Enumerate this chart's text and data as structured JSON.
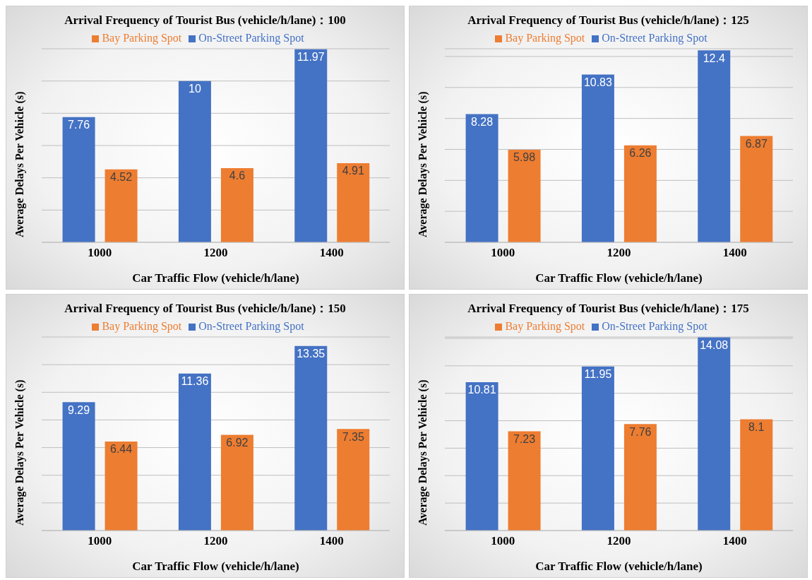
{
  "chart_data": [
    {
      "type": "bar",
      "title": "Arrival Frequency of Tourist Bus (vehicle/h/lane)：100",
      "xlabel": "Car Traffic Flow (vehicle/h/lane)",
      "ylabel": "Average Delays Per Vehicle (s)",
      "categories": [
        "1000",
        "1200",
        "1400"
      ],
      "series": [
        {
          "name": "On-Street Parking Spot",
          "color": "#4472c4",
          "values": [
            7.76,
            10,
            11.97
          ]
        },
        {
          "name": "Bay Parking Spot",
          "color": "#ed7d31",
          "values": [
            4.52,
            4.6,
            4.91
          ]
        }
      ],
      "ylim": [
        0,
        12
      ],
      "yticks": [
        {
          "value": 0,
          "label": null
        },
        {
          "value": 2,
          "label": null
        },
        {
          "value": 4,
          "label": null
        },
        {
          "value": 6,
          "label": null
        },
        {
          "value": 8,
          "label": null
        },
        {
          "value": 10,
          "label": null
        },
        {
          "value": 12,
          "label": null
        }
      ],
      "tick_labels": "x",
      "grid": "y",
      "legend": "top",
      "data_labels": true
    },
    {
      "type": "bar",
      "title": "Arrival Frequency of Tourist Bus (vehicle/h/lane)：125",
      "xlabel": "Car Traffic Flow (vehicle/h/lane)",
      "ylabel": "Average Delays Per Vehicle (s)",
      "categories": [
        "1000",
        "1200",
        "1400"
      ],
      "series": [
        {
          "name": "On-Street Parking Spot",
          "color": "#4472c4",
          "values": [
            8.28,
            10.83,
            12.4
          ]
        },
        {
          "name": "Bay Parking Spot",
          "color": "#ed7d31",
          "values": [
            5.98,
            6.26,
            6.87
          ]
        }
      ],
      "ylim": [
        0,
        12.5
      ],
      "yticks": [
        {
          "value": 0,
          "label": null
        },
        {
          "value": 2,
          "label": null
        },
        {
          "value": 4,
          "label": null
        },
        {
          "value": 6,
          "label": null
        },
        {
          "value": 8,
          "label": null
        },
        {
          "value": 10,
          "label": null
        },
        {
          "value": 12,
          "label": null
        }
      ],
      "tick_labels": "x",
      "grid": "y",
      "legend": "top",
      "data_labels": true
    },
    {
      "type": "bar",
      "title": "Arrival Frequency of Tourist Bus (vehicle/h/lane)：150",
      "xlabel": "Car Traffic Flow (vehicle/h/lane)",
      "ylabel": "Average Delays Per Vehicle (s)",
      "categories": [
        "1000",
        "1200",
        "1400"
      ],
      "series": [
        {
          "name": "On-Street Parking Spot",
          "color": "#4472c4",
          "values": [
            9.29,
            11.36,
            13.35
          ]
        },
        {
          "name": "Bay Parking Spot",
          "color": "#ed7d31",
          "values": [
            6.44,
            6.92,
            7.35
          ]
        }
      ],
      "ylim": [
        0,
        14
      ],
      "yticks": [
        {
          "value": 0,
          "label": null
        },
        {
          "value": 2,
          "label": null
        },
        {
          "value": 4,
          "label": null
        },
        {
          "value": 6,
          "label": null
        },
        {
          "value": 8,
          "label": null
        },
        {
          "value": 10,
          "label": null
        },
        {
          "value": 12,
          "label": null
        },
        {
          "value": 14,
          "label": null
        }
      ],
      "tick_labels": "x",
      "grid": "y",
      "legend": "top",
      "data_labels": true
    },
    {
      "type": "bar",
      "title": "Arrival Frequency of Tourist Bus (vehicle/h/lane)：175",
      "xlabel": "Car Traffic Flow (vehicle/h/lane)",
      "ylabel": "Average Delays Per Vehicle (s)",
      "categories": [
        "1000",
        "1200",
        "1400"
      ],
      "series": [
        {
          "name": "On-Street Parking Spot",
          "color": "#4472c4",
          "values": [
            10.81,
            11.95,
            14.08
          ]
        },
        {
          "name": "Bay Parking Spot",
          "color": "#ed7d31",
          "values": [
            7.23,
            7.76,
            8.1
          ]
        }
      ],
      "ylim": [
        0,
        14.1
      ],
      "yticks": [
        {
          "value": 0,
          "label": null
        },
        {
          "value": 2,
          "label": null
        },
        {
          "value": 4,
          "label": null
        },
        {
          "value": 6,
          "label": null
        },
        {
          "value": 8,
          "label": null
        },
        {
          "value": 10,
          "label": null
        },
        {
          "value": 12,
          "label": null
        },
        {
          "value": 14,
          "label": null
        }
      ],
      "tick_labels": "x",
      "grid": "y",
      "legend": "top",
      "data_labels": true
    }
  ]
}
